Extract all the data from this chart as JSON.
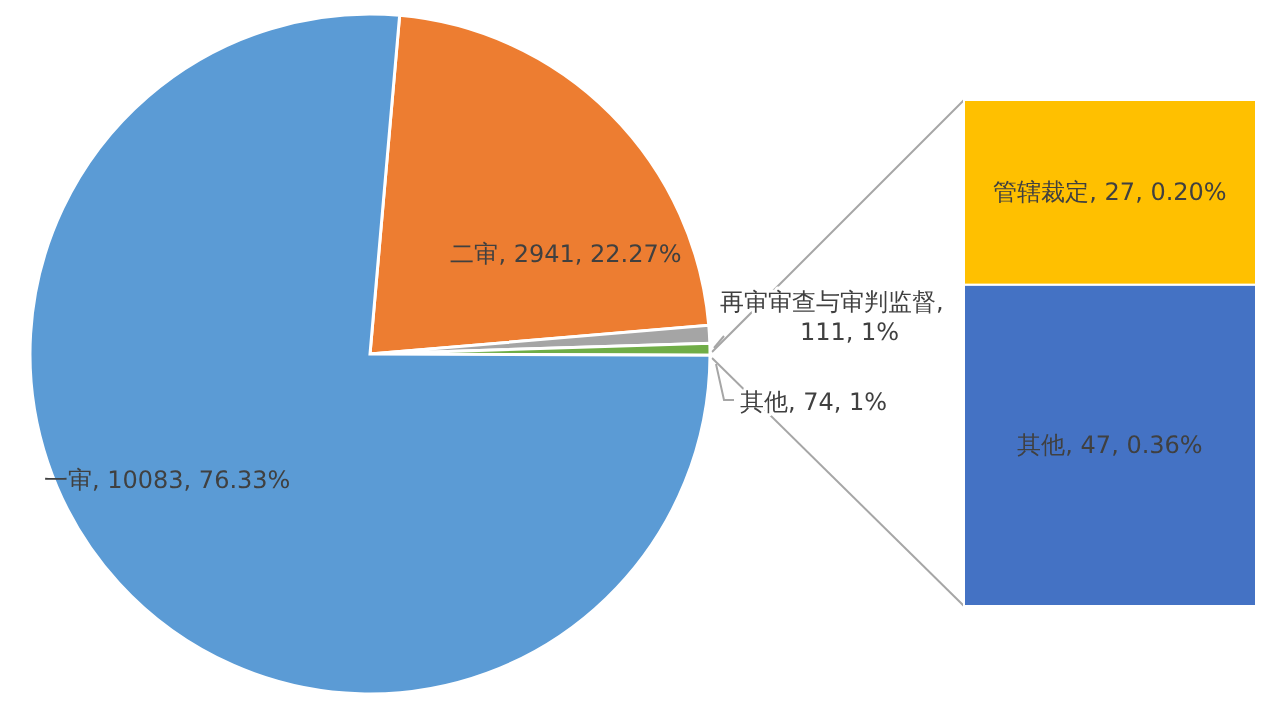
{
  "chart_data": [
    {
      "type": "pie",
      "categories": [
        "二审",
        "再审审查与审判监督",
        "其他",
        "一审"
      ],
      "values": [
        2941,
        111,
        74,
        10083
      ],
      "colors": [
        "#ed7d31",
        "#a5a5a5",
        "#70ad47",
        "#5b9bd5"
      ],
      "value_labels": [
        ", 2941, 22.27%",
        ", 111, 1%",
        ", 74, 1%",
        ", 10083, 76.33%"
      ]
    },
    {
      "type": "bar",
      "stacked": true,
      "tick_labels": false,
      "categories": [
        null
      ],
      "series": [
        {
          "name": "其他",
          "color": "#4472c4",
          "values": [
            47
          ],
          "value_labels": [
            ", 47, 0.36%"
          ]
        },
        {
          "name": "管辖裁定",
          "color": "#ffc000",
          "values": [
            27
          ],
          "value_labels": [
            ", 27, 0.20%"
          ]
        }
      ]
    }
  ]
}
